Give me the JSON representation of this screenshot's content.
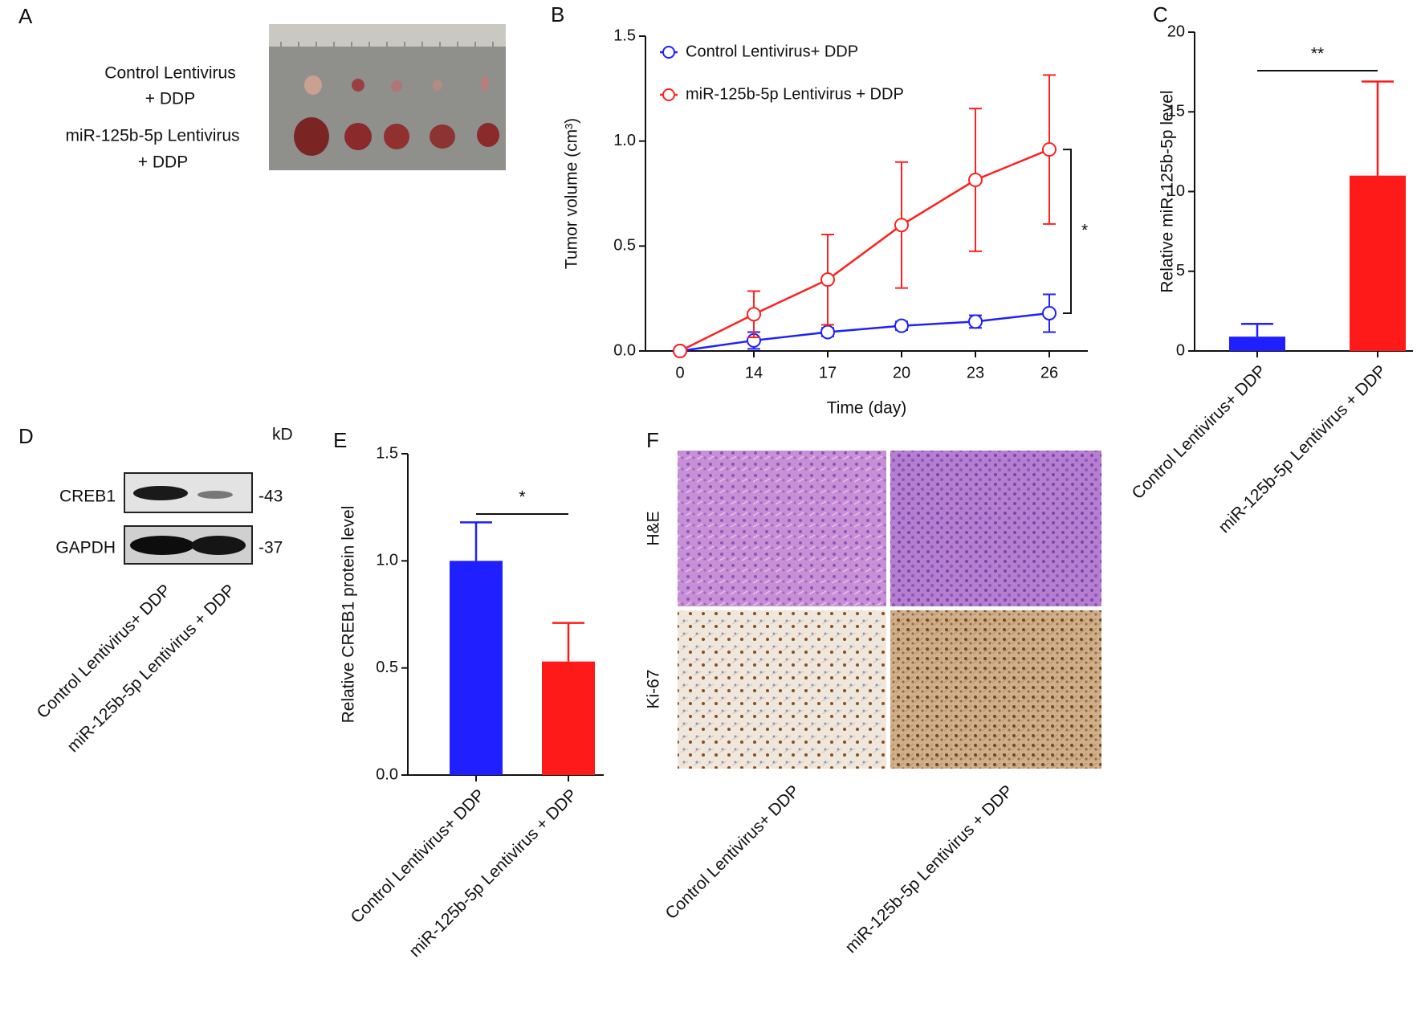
{
  "panel_labels": [
    "A",
    "B",
    "C",
    "D",
    "E",
    "F"
  ],
  "photo": {
    "rows": [
      [
        "Control Lentivirus",
        "+ DDP"
      ],
      [
        "miR-125b-5p Lentivirus",
        "+ DDP"
      ]
    ]
  },
  "blot": {
    "unit": "kD",
    "bands": [
      {
        "name": "CREB1",
        "marker": "-43"
      },
      {
        "name": "GAPDH",
        "marker": "-37"
      }
    ],
    "lanes": [
      "Control Lentivirus+ DDP",
      "miR-125b-5p Lentivirus + DDP"
    ]
  },
  "histology": {
    "rows": [
      "H&E",
      "Ki-67"
    ],
    "lanes": [
      "Control Lentivirus+ DDP",
      "miR-125b-5p Lentivirus + DDP"
    ]
  },
  "chart_data": [
    {
      "type": "line",
      "xlabel": "Time (day)",
      "ylabel": "Tumor volume (cm³)",
      "categories": [
        "0",
        "14",
        "17",
        "20",
        "23",
        "26"
      ],
      "series": [
        {
          "name": "Control Lentivirus+ DDP",
          "color": "#1f1fff",
          "values": [
            0,
            0.05,
            0.09,
            0.12,
            0.14,
            0.18
          ],
          "errors": [
            0,
            0.04,
            0.02,
            0.02,
            0.03,
            0.09
          ]
        },
        {
          "name": "miR-125b-5p Lentivirus + DDP",
          "color": "#ff2020",
          "values": [
            0,
            0.175,
            0.34,
            0.6,
            0.815,
            0.96
          ],
          "errors": [
            0,
            0.11,
            0.215,
            0.3,
            0.34,
            0.355
          ]
        }
      ],
      "ylim": [
        0,
        1.5
      ],
      "yticks": [
        {
          "value": 0,
          "label": "0.0"
        },
        0.5,
        {
          "value": 1,
          "label": "1.0"
        },
        1.5
      ],
      "significance": "*"
    },
    {
      "type": "bar",
      "ylabel": "Relative miR-125b-5p level",
      "categories": [
        "Control Lentivirus+ DDP",
        "miR-125b-5p Lentivirus + DDP"
      ],
      "values": [
        0.9,
        11.0
      ],
      "errors": [
        0.8,
        5.9
      ],
      "colors": [
        "#1f1fff",
        "#ff1a1a"
      ],
      "ylim": [
        0,
        20
      ],
      "yticks": [
        0,
        5,
        10,
        15,
        20
      ],
      "significance": "**"
    },
    {
      "type": "bar",
      "ylabel": "Relative CREB1 protein level",
      "categories": [
        "Control Lentivirus+ DDP",
        "miR-125b-5p Lentivirus + DDP"
      ],
      "values": [
        1.0,
        0.53
      ],
      "errors": [
        0.18,
        0.18
      ],
      "colors": [
        "#1f1fff",
        "#ff1a1a"
      ],
      "ylim": [
        0,
        1.5
      ],
      "yticks": [
        {
          "value": 0,
          "label": "0.0"
        },
        0.5,
        {
          "value": 1,
          "label": "1.0"
        },
        1.5
      ],
      "significance": "*"
    }
  ]
}
